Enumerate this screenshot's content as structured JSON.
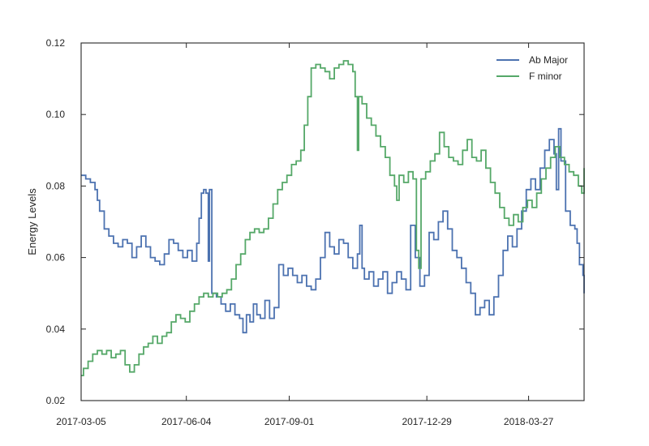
{
  "chart_data": {
    "type": "line",
    "title": "",
    "xlabel": "",
    "ylabel": "Energy Levels",
    "x_type": "date",
    "xlim": [
      "2017-03-05",
      "2018-05-14"
    ],
    "ylim": [
      0.02,
      0.12
    ],
    "x_ticks": [
      "2017-03-05",
      "2017-06-04",
      "2017-09-01",
      "2017-12-29",
      "2018-03-27"
    ],
    "y_ticks": [
      0.02,
      0.04,
      0.06,
      0.08,
      0.1,
      0.12
    ],
    "y_tick_labels": [
      "0.02",
      "0.04",
      "0.06",
      "0.08",
      "0.10",
      "0.12"
    ],
    "grid": false,
    "legend": "top-right",
    "series": [
      {
        "name": "Ab Major",
        "color": "#4c72b0",
        "style": "steps",
        "points": [
          [
            "2017-03-05",
            0.083
          ],
          [
            "2017-03-09",
            0.082
          ],
          [
            "2017-03-13",
            0.081
          ],
          [
            "2017-03-17",
            0.079
          ],
          [
            "2017-03-19",
            0.076
          ],
          [
            "2017-03-21",
            0.073
          ],
          [
            "2017-03-25",
            0.068
          ],
          [
            "2017-03-29",
            0.066
          ],
          [
            "2017-04-02",
            0.064
          ],
          [
            "2017-04-06",
            0.063
          ],
          [
            "2017-04-10",
            0.065
          ],
          [
            "2017-04-14",
            0.064
          ],
          [
            "2017-04-18",
            0.06
          ],
          [
            "2017-04-22",
            0.063
          ],
          [
            "2017-04-26",
            0.066
          ],
          [
            "2017-04-30",
            0.063
          ],
          [
            "2017-05-04",
            0.06
          ],
          [
            "2017-05-08",
            0.059
          ],
          [
            "2017-05-12",
            0.058
          ],
          [
            "2017-05-16",
            0.061
          ],
          [
            "2017-05-20",
            0.065
          ],
          [
            "2017-05-24",
            0.064
          ],
          [
            "2017-05-28",
            0.062
          ],
          [
            "2017-06-01",
            0.06
          ],
          [
            "2017-06-05",
            0.062
          ],
          [
            "2017-06-09",
            0.059
          ],
          [
            "2017-06-13",
            0.064
          ],
          [
            "2017-06-15",
            0.071
          ],
          [
            "2017-06-17",
            0.078
          ],
          [
            "2017-06-19",
            0.079
          ],
          [
            "2017-06-21",
            0.078
          ],
          [
            "2017-06-23",
            0.059
          ],
          [
            "2017-06-24",
            0.079
          ],
          [
            "2017-06-26",
            0.05
          ],
          [
            "2017-06-30",
            0.049
          ],
          [
            "2017-07-04",
            0.047
          ],
          [
            "2017-07-08",
            0.045
          ],
          [
            "2017-07-12",
            0.047
          ],
          [
            "2017-07-16",
            0.044
          ],
          [
            "2017-07-20",
            0.043
          ],
          [
            "2017-07-23",
            0.039
          ],
          [
            "2017-07-26",
            0.044
          ],
          [
            "2017-07-29",
            0.042
          ],
          [
            "2017-08-01",
            0.047
          ],
          [
            "2017-08-04",
            0.044
          ],
          [
            "2017-08-07",
            0.043
          ],
          [
            "2017-08-11",
            0.048
          ],
          [
            "2017-08-15",
            0.043
          ],
          [
            "2017-08-19",
            0.046
          ],
          [
            "2017-08-23",
            0.058
          ],
          [
            "2017-08-27",
            0.055
          ],
          [
            "2017-08-31",
            0.057
          ],
          [
            "2017-09-04",
            0.055
          ],
          [
            "2017-09-08",
            0.053
          ],
          [
            "2017-09-12",
            0.055
          ],
          [
            "2017-09-16",
            0.052
          ],
          [
            "2017-09-20",
            0.051
          ],
          [
            "2017-09-24",
            0.054
          ],
          [
            "2017-09-28",
            0.06
          ],
          [
            "2017-10-02",
            0.067
          ],
          [
            "2017-10-06",
            0.063
          ],
          [
            "2017-10-10",
            0.061
          ],
          [
            "2017-10-14",
            0.065
          ],
          [
            "2017-10-18",
            0.064
          ],
          [
            "2017-10-22",
            0.06
          ],
          [
            "2017-10-26",
            0.057
          ],
          [
            "2017-10-30",
            0.061
          ],
          [
            "2017-11-01",
            0.069
          ],
          [
            "2017-11-03",
            0.057
          ],
          [
            "2017-11-05",
            0.054
          ],
          [
            "2017-11-09",
            0.056
          ],
          [
            "2017-11-13",
            0.052
          ],
          [
            "2017-11-17",
            0.054
          ],
          [
            "2017-11-21",
            0.056
          ],
          [
            "2017-11-25",
            0.05
          ],
          [
            "2017-11-29",
            0.053
          ],
          [
            "2017-12-03",
            0.056
          ],
          [
            "2017-12-07",
            0.054
          ],
          [
            "2017-12-11",
            0.051
          ],
          [
            "2017-12-15",
            0.069
          ],
          [
            "2017-12-19",
            0.06
          ],
          [
            "2017-12-23",
            0.052
          ],
          [
            "2017-12-27",
            0.055
          ],
          [
            "2017-12-31",
            0.067
          ],
          [
            "2018-01-04",
            0.065
          ],
          [
            "2018-01-08",
            0.07
          ],
          [
            "2018-01-12",
            0.073
          ],
          [
            "2018-01-16",
            0.068
          ],
          [
            "2018-01-20",
            0.062
          ],
          [
            "2018-01-24",
            0.06
          ],
          [
            "2018-01-28",
            0.057
          ],
          [
            "2018-02-01",
            0.053
          ],
          [
            "2018-02-05",
            0.05
          ],
          [
            "2018-02-09",
            0.044
          ],
          [
            "2018-02-13",
            0.046
          ],
          [
            "2018-02-17",
            0.048
          ],
          [
            "2018-02-21",
            0.044
          ],
          [
            "2018-02-25",
            0.049
          ],
          [
            "2018-03-01",
            0.055
          ],
          [
            "2018-03-05",
            0.062
          ],
          [
            "2018-03-09",
            0.066
          ],
          [
            "2018-03-13",
            0.063
          ],
          [
            "2018-03-17",
            0.068
          ],
          [
            "2018-03-21",
            0.073
          ],
          [
            "2018-03-25",
            0.079
          ],
          [
            "2018-03-29",
            0.082
          ],
          [
            "2018-04-02",
            0.079
          ],
          [
            "2018-04-06",
            0.085
          ],
          [
            "2018-04-10",
            0.09
          ],
          [
            "2018-04-14",
            0.093
          ],
          [
            "2018-04-18",
            0.089
          ],
          [
            "2018-04-20",
            0.079
          ],
          [
            "2018-04-22",
            0.096
          ],
          [
            "2018-04-24",
            0.087
          ],
          [
            "2018-04-28",
            0.073
          ],
          [
            "2018-05-02",
            0.069
          ],
          [
            "2018-05-06",
            0.068
          ],
          [
            "2018-05-08",
            0.064
          ],
          [
            "2018-05-10",
            0.058
          ],
          [
            "2018-05-13",
            0.055
          ],
          [
            "2018-05-14",
            0.05
          ]
        ]
      },
      {
        "name": "F minor",
        "color": "#55a868",
        "style": "steps",
        "points": [
          [
            "2017-03-05",
            0.027
          ],
          [
            "2017-03-07",
            0.029
          ],
          [
            "2017-03-11",
            0.031
          ],
          [
            "2017-03-15",
            0.033
          ],
          [
            "2017-03-19",
            0.034
          ],
          [
            "2017-03-23",
            0.033
          ],
          [
            "2017-03-27",
            0.034
          ],
          [
            "2017-03-31",
            0.032
          ],
          [
            "2017-04-04",
            0.033
          ],
          [
            "2017-04-08",
            0.034
          ],
          [
            "2017-04-12",
            0.03
          ],
          [
            "2017-04-16",
            0.028
          ],
          [
            "2017-04-20",
            0.03
          ],
          [
            "2017-04-24",
            0.033
          ],
          [
            "2017-04-28",
            0.035
          ],
          [
            "2017-05-02",
            0.036
          ],
          [
            "2017-05-06",
            0.038
          ],
          [
            "2017-05-10",
            0.036
          ],
          [
            "2017-05-14",
            0.038
          ],
          [
            "2017-05-18",
            0.039
          ],
          [
            "2017-05-22",
            0.042
          ],
          [
            "2017-05-26",
            0.044
          ],
          [
            "2017-05-30",
            0.043
          ],
          [
            "2017-06-03",
            0.042
          ],
          [
            "2017-06-07",
            0.045
          ],
          [
            "2017-06-11",
            0.047
          ],
          [
            "2017-06-15",
            0.049
          ],
          [
            "2017-06-19",
            0.05
          ],
          [
            "2017-06-23",
            0.049
          ],
          [
            "2017-06-27",
            0.05
          ],
          [
            "2017-07-01",
            0.049
          ],
          [
            "2017-07-05",
            0.05
          ],
          [
            "2017-07-09",
            0.051
          ],
          [
            "2017-07-13",
            0.054
          ],
          [
            "2017-07-17",
            0.058
          ],
          [
            "2017-07-21",
            0.061
          ],
          [
            "2017-07-25",
            0.065
          ],
          [
            "2017-07-29",
            0.067
          ],
          [
            "2017-08-02",
            0.068
          ],
          [
            "2017-08-06",
            0.067
          ],
          [
            "2017-08-10",
            0.068
          ],
          [
            "2017-08-14",
            0.071
          ],
          [
            "2017-08-18",
            0.075
          ],
          [
            "2017-08-22",
            0.079
          ],
          [
            "2017-08-26",
            0.081
          ],
          [
            "2017-08-30",
            0.083
          ],
          [
            "2017-09-03",
            0.086
          ],
          [
            "2017-09-07",
            0.087
          ],
          [
            "2017-09-11",
            0.09
          ],
          [
            "2017-09-14",
            0.097
          ],
          [
            "2017-09-17",
            0.105
          ],
          [
            "2017-09-20",
            0.113
          ],
          [
            "2017-09-24",
            0.114
          ],
          [
            "2017-09-28",
            0.113
          ],
          [
            "2017-10-02",
            0.112
          ],
          [
            "2017-10-06",
            0.11
          ],
          [
            "2017-10-10",
            0.113
          ],
          [
            "2017-10-14",
            0.114
          ],
          [
            "2017-10-18",
            0.115
          ],
          [
            "2017-10-22",
            0.114
          ],
          [
            "2017-10-26",
            0.112
          ],
          [
            "2017-10-28",
            0.105
          ],
          [
            "2017-10-30",
            0.09
          ],
          [
            "2017-10-31",
            0.105
          ],
          [
            "2017-11-03",
            0.103
          ],
          [
            "2017-11-07",
            0.099
          ],
          [
            "2017-11-11",
            0.097
          ],
          [
            "2017-11-15",
            0.094
          ],
          [
            "2017-11-19",
            0.091
          ],
          [
            "2017-11-23",
            0.088
          ],
          [
            "2017-11-27",
            0.083
          ],
          [
            "2017-12-01",
            0.08
          ],
          [
            "2017-12-03",
            0.076
          ],
          [
            "2017-12-05",
            0.083
          ],
          [
            "2017-12-09",
            0.081
          ],
          [
            "2017-12-13",
            0.084
          ],
          [
            "2017-12-17",
            0.082
          ],
          [
            "2017-12-20",
            0.062
          ],
          [
            "2017-12-22",
            0.057
          ],
          [
            "2017-12-24",
            0.082
          ],
          [
            "2017-12-28",
            0.084
          ],
          [
            "2018-01-01",
            0.087
          ],
          [
            "2018-01-05",
            0.089
          ],
          [
            "2018-01-09",
            0.095
          ],
          [
            "2018-01-13",
            0.091
          ],
          [
            "2018-01-17",
            0.088
          ],
          [
            "2018-01-21",
            0.087
          ],
          [
            "2018-01-25",
            0.086
          ],
          [
            "2018-01-29",
            0.09
          ],
          [
            "2018-02-02",
            0.093
          ],
          [
            "2018-02-06",
            0.088
          ],
          [
            "2018-02-10",
            0.087
          ],
          [
            "2018-02-14",
            0.09
          ],
          [
            "2018-02-18",
            0.085
          ],
          [
            "2018-02-22",
            0.081
          ],
          [
            "2018-02-26",
            0.078
          ],
          [
            "2018-03-02",
            0.074
          ],
          [
            "2018-03-06",
            0.071
          ],
          [
            "2018-03-10",
            0.069
          ],
          [
            "2018-03-14",
            0.072
          ],
          [
            "2018-03-18",
            0.07
          ],
          [
            "2018-03-22",
            0.074
          ],
          [
            "2018-03-26",
            0.076
          ],
          [
            "2018-03-30",
            0.074
          ],
          [
            "2018-04-03",
            0.078
          ],
          [
            "2018-04-07",
            0.082
          ],
          [
            "2018-04-11",
            0.085
          ],
          [
            "2018-04-15",
            0.088
          ],
          [
            "2018-04-19",
            0.091
          ],
          [
            "2018-04-23",
            0.088
          ],
          [
            "2018-04-27",
            0.086
          ],
          [
            "2018-05-01",
            0.084
          ],
          [
            "2018-05-05",
            0.083
          ],
          [
            "2018-05-09",
            0.08
          ],
          [
            "2018-05-12",
            0.078
          ],
          [
            "2018-05-14",
            0.085
          ]
        ]
      }
    ]
  }
}
